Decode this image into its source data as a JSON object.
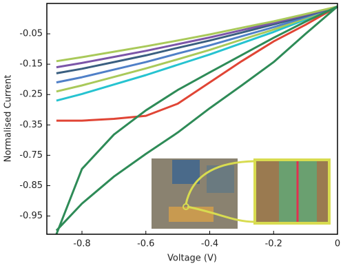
{
  "chart_data": {
    "type": "line",
    "x_label": "Voltage (V)",
    "y_label": "Normalised Current",
    "x": [
      -0.88,
      -0.8,
      -0.7,
      -0.6,
      -0.5,
      -0.4,
      -0.3,
      -0.2,
      -0.1,
      0
    ],
    "xlim": [
      -0.91,
      0
    ],
    "xticks": [
      -0.8,
      -0.6,
      -0.4,
      -0.2,
      0
    ],
    "ylim": [
      -1.01,
      0.05
    ],
    "yticks": [
      -0.05,
      -0.15,
      -0.25,
      -0.35,
      -0.75,
      -0.85,
      -0.95
    ],
    "series": [
      {
        "color": "#26c3d0",
        "values": [
          -0.27,
          -0.248,
          -0.217,
          -0.186,
          -0.152,
          -0.118,
          -0.081,
          -0.044,
          -0.003,
          0.04
        ]
      },
      {
        "color": "#a9c95a",
        "values": [
          -0.24,
          -0.22,
          -0.192,
          -0.164,
          -0.134,
          -0.103,
          -0.069,
          -0.036,
          0.001,
          0.04
        ]
      },
      {
        "color": "#5080c8",
        "values": [
          -0.21,
          -0.193,
          -0.168,
          -0.143,
          -0.115,
          -0.088,
          -0.058,
          -0.028,
          0.005,
          0.04
        ]
      },
      {
        "color": "#3a5f80",
        "values": [
          -0.18,
          -0.165,
          -0.143,
          -0.121,
          -0.096,
          -0.072,
          -0.046,
          -0.019,
          0.009,
          0.04
        ]
      },
      {
        "color": "#7b55a8",
        "values": [
          -0.16,
          -0.146,
          -0.126,
          -0.106,
          -0.084,
          -0.062,
          -0.038,
          -0.014,
          0.012,
          0.04
        ]
      },
      {
        "color": "#a9c95a",
        "values": [
          -0.14,
          -0.127,
          -0.109,
          -0.091,
          -0.072,
          -0.052,
          -0.03,
          -0.009,
          0.015,
          0.04
        ]
      },
      {
        "color": "#e04535",
        "values": [
          -0.336,
          -0.336,
          -0.33,
          -0.32,
          -0.28,
          -0.21,
          -0.14,
          -0.075,
          -0.02,
          0.04
        ]
      },
      {
        "color": "#2e8b57",
        "values": [
          -1.01,
          -0.795,
          -0.477,
          -0.302,
          -0.235,
          -0.177,
          -0.12,
          -0.063,
          -0.01,
          0.04
        ]
      },
      {
        "color": "#2e8b57",
        "values": [
          -0.998,
          -0.909,
          -0.82,
          -0.732,
          -0.45,
          -0.295,
          -0.22,
          -0.143,
          -0.05,
          0.04
        ]
      }
    ]
  }
}
